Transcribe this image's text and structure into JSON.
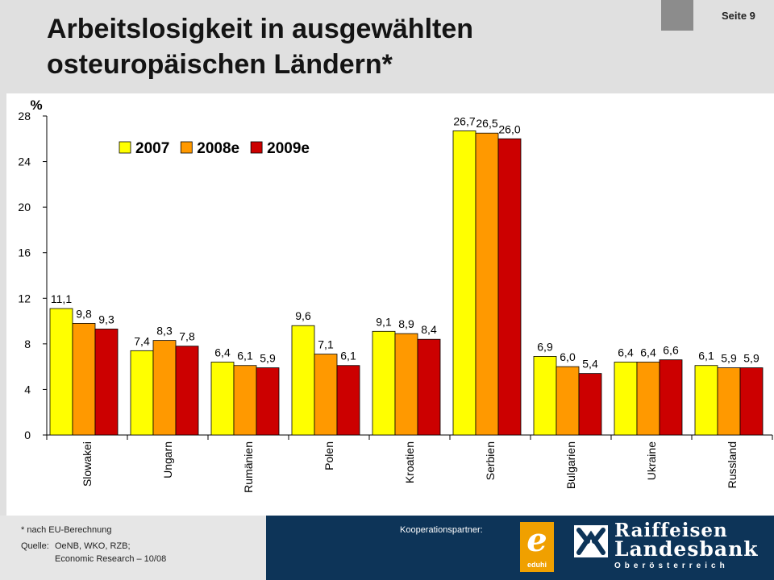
{
  "header": {
    "title": "Arbeitslosigkeit in ausgewählten osteuropäischen Ländern*",
    "page_label": "Seite 9"
  },
  "footer": {
    "footnote": "* nach EU-Berechnung",
    "source_label": "Quelle:",
    "source_line1": "OeNB, WKO, RZB;",
    "source_line2": "Economic Research – 10/08",
    "partner_label": "Kooperationspartner:",
    "logo_eduhi": "eduhi",
    "logo_bank_line1": "Raiffeisen",
    "logo_bank_line2": "Landesbank",
    "logo_bank_line3": "Oberösterreich"
  },
  "chart_data": {
    "type": "bar",
    "ylabel": "%",
    "ylim": [
      0,
      28
    ],
    "yticks": [
      0,
      4,
      8,
      12,
      16,
      20,
      24,
      28
    ],
    "categories": [
      "Slowakei",
      "Ungarn",
      "Rumänien",
      "Polen",
      "Kroatien",
      "Serbien",
      "Bulgarien",
      "Ukraine",
      "Russland"
    ],
    "series": [
      {
        "name": "2007",
        "color": "#ffff00",
        "values": [
          11.1,
          7.4,
          6.4,
          9.6,
          9.1,
          26.7,
          6.9,
          6.4,
          6.1
        ],
        "labels": [
          "11,1",
          "7,4",
          "6,4",
          "9,6",
          "9,1",
          "26,7",
          "6,9",
          "6,4",
          "6,1"
        ]
      },
      {
        "name": "2008e",
        "color": "#ff9900",
        "values": [
          9.8,
          8.3,
          6.1,
          7.1,
          8.9,
          26.5,
          6.0,
          6.4,
          5.9
        ],
        "labels": [
          "9,8",
          "8,3",
          "6,1",
          "7,1",
          "8,9",
          "26,5",
          "6,0",
          "6,4",
          "5,9"
        ]
      },
      {
        "name": "2009e",
        "color": "#cc0000",
        "values": [
          9.3,
          7.8,
          5.9,
          6.1,
          8.4,
          26.0,
          5.4,
          6.6,
          5.9
        ],
        "labels": [
          "9,3",
          "7,8",
          "5,9",
          "6,1",
          "8,4",
          "26,0",
          "5,4",
          "6,6",
          "5,9"
        ]
      }
    ],
    "legend_position": "top-left",
    "grid": false
  }
}
